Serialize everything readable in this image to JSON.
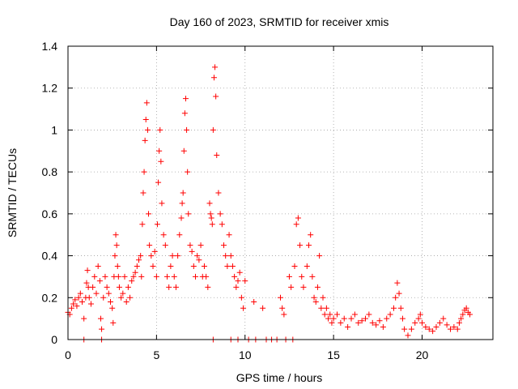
{
  "chart_data": {
    "type": "scatter",
    "title": "Day 160 of 2023, SRMTID for receiver xmis",
    "xlabel": "GPS time / hours",
    "ylabel": "SRMTID / TECUs",
    "xlim": [
      0,
      24
    ],
    "ylim": [
      0,
      1.4
    ],
    "xticks": [
      0,
      5,
      10,
      15,
      20
    ],
    "xtick_labels": [
      "0",
      "5",
      "10",
      "15",
      "20"
    ],
    "yticks": [
      0,
      0.2,
      0.4,
      0.6,
      0.8,
      1.0,
      1.2,
      1.4
    ],
    "ytick_labels": [
      "0",
      "0.2",
      "0.4",
      "0.6",
      "0.8",
      "1",
      "1.2",
      "1.4"
    ],
    "grid": true,
    "marker": "+",
    "color": "#ff0000",
    "series": [
      {
        "name": "SRMTID",
        "points": [
          [
            0.0,
            0.13
          ],
          [
            0.1,
            0.12
          ],
          [
            0.2,
            0.15
          ],
          [
            0.3,
            0.17
          ],
          [
            0.4,
            0.19
          ],
          [
            0.5,
            0.16
          ],
          [
            0.6,
            0.2
          ],
          [
            0.7,
            0.22
          ],
          [
            0.8,
            0.18
          ],
          [
            0.9,
            0.1
          ],
          [
            1.0,
            0.2
          ],
          [
            1.05,
            0.27
          ],
          [
            1.1,
            0.33
          ],
          [
            1.15,
            0.25
          ],
          [
            1.2,
            0.2
          ],
          [
            1.3,
            0.17
          ],
          [
            1.4,
            0.25
          ],
          [
            1.5,
            0.3
          ],
          [
            1.6,
            0.22
          ],
          [
            1.7,
            0.35
          ],
          [
            1.8,
            0.28
          ],
          [
            1.85,
            0.1
          ],
          [
            1.9,
            0.05
          ],
          [
            2.0,
            0.2
          ],
          [
            2.1,
            0.3
          ],
          [
            2.2,
            0.25
          ],
          [
            2.3,
            0.22
          ],
          [
            2.4,
            0.18
          ],
          [
            2.5,
            0.15
          ],
          [
            2.55,
            0.08
          ],
          [
            2.6,
            0.3
          ],
          [
            2.65,
            0.4
          ],
          [
            2.7,
            0.5
          ],
          [
            2.75,
            0.45
          ],
          [
            2.8,
            0.35
          ],
          [
            2.85,
            0.3
          ],
          [
            2.9,
            0.25
          ],
          [
            3.0,
            0.2
          ],
          [
            3.1,
            0.22
          ],
          [
            3.2,
            0.3
          ],
          [
            3.3,
            0.18
          ],
          [
            3.4,
            0.25
          ],
          [
            3.5,
            0.2
          ],
          [
            3.6,
            0.28
          ],
          [
            3.7,
            0.3
          ],
          [
            3.8,
            0.32
          ],
          [
            3.9,
            0.35
          ],
          [
            4.0,
            0.38
          ],
          [
            4.1,
            0.4
          ],
          [
            4.15,
            0.3
          ],
          [
            4.2,
            0.55
          ],
          [
            4.25,
            0.7
          ],
          [
            4.3,
            0.8
          ],
          [
            4.35,
            0.95
          ],
          [
            4.4,
            1.05
          ],
          [
            4.45,
            1.13
          ],
          [
            4.5,
            1.0
          ],
          [
            4.55,
            0.6
          ],
          [
            4.6,
            0.45
          ],
          [
            4.7,
            0.4
          ],
          [
            4.8,
            0.35
          ],
          [
            4.9,
            0.42
          ],
          [
            5.0,
            0.3
          ],
          [
            5.05,
            0.55
          ],
          [
            5.1,
            0.75
          ],
          [
            5.15,
            0.9
          ],
          [
            5.2,
            1.0
          ],
          [
            5.25,
            0.85
          ],
          [
            5.3,
            0.65
          ],
          [
            5.4,
            0.5
          ],
          [
            5.5,
            0.45
          ],
          [
            5.6,
            0.3
          ],
          [
            5.7,
            0.25
          ],
          [
            5.8,
            0.35
          ],
          [
            5.9,
            0.4
          ],
          [
            6.0,
            0.3
          ],
          [
            6.1,
            0.25
          ],
          [
            6.2,
            0.4
          ],
          [
            6.3,
            0.5
          ],
          [
            6.4,
            0.58
          ],
          [
            6.45,
            0.65
          ],
          [
            6.5,
            0.7
          ],
          [
            6.55,
            0.9
          ],
          [
            6.6,
            1.08
          ],
          [
            6.65,
            1.15
          ],
          [
            6.7,
            1.0
          ],
          [
            6.75,
            0.8
          ],
          [
            6.8,
            0.6
          ],
          [
            6.9,
            0.45
          ],
          [
            7.0,
            0.42
          ],
          [
            7.1,
            0.35
          ],
          [
            7.2,
            0.3
          ],
          [
            7.3,
            0.4
          ],
          [
            7.4,
            0.38
          ],
          [
            7.5,
            0.45
          ],
          [
            7.6,
            0.3
          ],
          [
            7.7,
            0.35
          ],
          [
            7.8,
            0.3
          ],
          [
            7.9,
            0.25
          ],
          [
            8.0,
            0.65
          ],
          [
            8.05,
            0.6
          ],
          [
            8.1,
            0.58
          ],
          [
            8.15,
            0.55
          ],
          [
            8.2,
            1.0
          ],
          [
            8.25,
            1.25
          ],
          [
            8.3,
            1.3
          ],
          [
            8.35,
            1.16
          ],
          [
            8.4,
            0.88
          ],
          [
            8.5,
            0.7
          ],
          [
            8.6,
            0.6
          ],
          [
            8.7,
            0.55
          ],
          [
            8.8,
            0.45
          ],
          [
            8.9,
            0.4
          ],
          [
            9.0,
            0.35
          ],
          [
            9.1,
            0.5
          ],
          [
            9.2,
            0.4
          ],
          [
            9.3,
            0.35
          ],
          [
            9.4,
            0.3
          ],
          [
            9.5,
            0.25
          ],
          [
            9.6,
            0.28
          ],
          [
            9.7,
            0.32
          ],
          [
            9.8,
            0.2
          ],
          [
            9.9,
            0.15
          ],
          [
            10.0,
            0.28
          ],
          [
            10.5,
            0.18
          ],
          [
            11.0,
            0.15
          ],
          [
            11.5,
            0.0
          ],
          [
            12.0,
            0.2
          ],
          [
            12.1,
            0.15
          ],
          [
            12.2,
            0.12
          ],
          [
            12.5,
            0.3
          ],
          [
            12.6,
            0.25
          ],
          [
            12.8,
            0.35
          ],
          [
            12.9,
            0.55
          ],
          [
            13.0,
            0.58
          ],
          [
            13.1,
            0.45
          ],
          [
            13.2,
            0.3
          ],
          [
            13.3,
            0.25
          ],
          [
            13.5,
            0.35
          ],
          [
            13.6,
            0.45
          ],
          [
            13.7,
            0.5
          ],
          [
            13.8,
            0.3
          ],
          [
            13.9,
            0.2
          ],
          [
            14.0,
            0.18
          ],
          [
            14.1,
            0.25
          ],
          [
            14.2,
            0.4
          ],
          [
            14.3,
            0.15
          ],
          [
            14.4,
            0.2
          ],
          [
            14.5,
            0.12
          ],
          [
            14.6,
            0.15
          ],
          [
            14.7,
            0.1
          ],
          [
            14.8,
            0.12
          ],
          [
            14.9,
            0.08
          ],
          [
            15.0,
            0.1
          ],
          [
            15.2,
            0.12
          ],
          [
            15.4,
            0.08
          ],
          [
            15.6,
            0.1
          ],
          [
            15.8,
            0.06
          ],
          [
            16.0,
            0.1
          ],
          [
            16.2,
            0.12
          ],
          [
            16.4,
            0.08
          ],
          [
            16.6,
            0.09
          ],
          [
            16.8,
            0.1
          ],
          [
            17.0,
            0.12
          ],
          [
            17.2,
            0.08
          ],
          [
            17.4,
            0.07
          ],
          [
            17.6,
            0.09
          ],
          [
            17.8,
            0.06
          ],
          [
            18.0,
            0.1
          ],
          [
            18.2,
            0.12
          ],
          [
            18.4,
            0.15
          ],
          [
            18.5,
            0.2
          ],
          [
            18.6,
            0.27
          ],
          [
            18.7,
            0.22
          ],
          [
            18.8,
            0.15
          ],
          [
            18.9,
            0.1
          ],
          [
            19.0,
            0.05
          ],
          [
            19.2,
            0.02
          ],
          [
            19.4,
            0.05
          ],
          [
            19.6,
            0.08
          ],
          [
            19.8,
            0.1
          ],
          [
            19.9,
            0.12
          ],
          [
            20.0,
            0.08
          ],
          [
            20.2,
            0.06
          ],
          [
            20.4,
            0.05
          ],
          [
            20.6,
            0.04
          ],
          [
            20.8,
            0.06
          ],
          [
            21.0,
            0.08
          ],
          [
            21.2,
            0.1
          ],
          [
            21.4,
            0.07
          ],
          [
            21.6,
            0.05
          ],
          [
            21.8,
            0.06
          ],
          [
            22.0,
            0.05
          ],
          [
            22.1,
            0.08
          ],
          [
            22.2,
            0.1
          ],
          [
            22.3,
            0.12
          ],
          [
            22.4,
            0.14
          ],
          [
            22.5,
            0.15
          ],
          [
            22.6,
            0.13
          ],
          [
            22.7,
            0.12
          ],
          [
            0.9,
            0.0
          ],
          [
            1.9,
            0.0
          ],
          [
            8.2,
            0.0
          ],
          [
            9.2,
            0.0
          ],
          [
            9.6,
            0.0
          ],
          [
            10.2,
            0.0
          ],
          [
            10.6,
            0.0
          ],
          [
            11.2,
            0.0
          ],
          [
            11.8,
            0.0
          ],
          [
            12.3,
            0.0
          ],
          [
            12.7,
            0.0
          ]
        ]
      }
    ]
  }
}
